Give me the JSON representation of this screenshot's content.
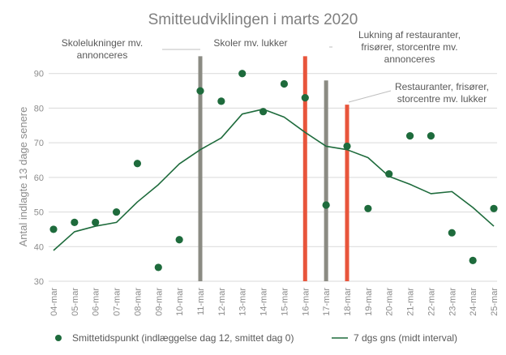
{
  "chart_data": {
    "type": "scatter",
    "title": "Smitteudviklingen i marts 2020",
    "xlabel": "",
    "ylabel": "Antal indlagte 13 dage senere",
    "ylim": [
      30,
      100
    ],
    "yticks": [
      30,
      40,
      50,
      60,
      70,
      80,
      90
    ],
    "categories": [
      "04-mar",
      "05-mar",
      "06-mar",
      "07-mar",
      "08-mar",
      "09-mar",
      "10-mar",
      "11-mar",
      "12-mar",
      "13-mar",
      "14-mar",
      "15-mar",
      "16-mar",
      "17-mar",
      "18-mar",
      "19-mar",
      "20-mar",
      "21-mar",
      "22-mar",
      "23-mar",
      "24-mar",
      "25-mar"
    ],
    "series": [
      {
        "name": "Smittetidspunkt (indlæggelse dag 12, smittet dag 0)",
        "kind": "scatter",
        "color": "#1e6b3c",
        "values": [
          45,
          47,
          47,
          50,
          64,
          34,
          42,
          85,
          82,
          90,
          79,
          87,
          83,
          52,
          69,
          51,
          61,
          72,
          72,
          44,
          36,
          51
        ]
      },
      {
        "name": "7 dgs gns (midt interval)",
        "kind": "line",
        "color": "#1e6b3c",
        "values": [
          38.9,
          44.3,
          45.9,
          47.0,
          52.9,
          57.9,
          63.9,
          68.0,
          71.4,
          78.3,
          79.7,
          77.4,
          73.0,
          69.0,
          68.0,
          65.7,
          60.3,
          58.0,
          55.3,
          55.9,
          51.3,
          45.9
        ]
      }
    ],
    "events": [
      {
        "date": "11-mar",
        "top": 95,
        "color": "#8b8b83",
        "label": [
          "Skolelukninger mv.",
          "annonceres"
        ]
      },
      {
        "date": "16-mar",
        "top": 95,
        "color": "#e8553b",
        "label": [
          "Skoler mv. lukker"
        ]
      },
      {
        "date": "17-mar",
        "top": 88,
        "color": "#8b8b83",
        "label": [
          "Lukning af restauranter,",
          "frisører, storcentre mv.",
          "annonceres"
        ]
      },
      {
        "date": "18-mar",
        "top": 81,
        "color": "#e8553b",
        "label": [
          "Restauranter, frisører,",
          "storcentre mv. lukker"
        ]
      }
    ],
    "grid": true,
    "legend_position": "bottom"
  }
}
